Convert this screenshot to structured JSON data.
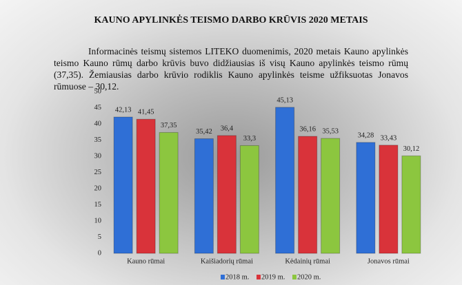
{
  "header": {
    "title": "KAUNO APYLINKĖS TEISMO DARBO KRŪVIS 2020 METAIS"
  },
  "paragraph": "Informacinės teismų sistemos LITEKO duomenimis, 2020 metais Kauno apylinkės teismo Kauno rūmų darbo krūvis buvo didžiausias iš visų Kauno apylinkės teismo rūmų (37,35). Žemiausias darbo krūvio rodiklis Kauno apylinkės teisme užfiksuotas Jonavos rūmuose – 30,12.",
  "chart_data": {
    "type": "bar",
    "categories": [
      "Kauno rūmai",
      "Kaišiadorių rūmai",
      "Kėdainių rūmai",
      "Jonavos rūmai"
    ],
    "series": [
      {
        "name": "2018 m.",
        "color": "#2f6fd6",
        "values": [
          42.13,
          35.42,
          45.13,
          34.28
        ],
        "value_labels": [
          "42,13",
          "35,42",
          "45,13",
          "34,28"
        ]
      },
      {
        "name": "2019 m.",
        "color": "#d9333a",
        "values": [
          41.45,
          36.4,
          36.16,
          33.43
        ],
        "value_labels": [
          "41,45",
          "36,4",
          "36,16",
          "33,43"
        ]
      },
      {
        "name": "2020 m.",
        "color": "#8cc63f",
        "values": [
          37.35,
          33.3,
          35.53,
          30.12
        ],
        "value_labels": [
          "37,35",
          "33,3",
          "35,53",
          "30,12"
        ]
      }
    ],
    "ylim": [
      0,
      50
    ],
    "yticks": [
      0,
      5,
      10,
      15,
      20,
      25,
      30,
      35,
      40,
      45,
      50
    ],
    "grid": false,
    "legend": "bottom"
  }
}
